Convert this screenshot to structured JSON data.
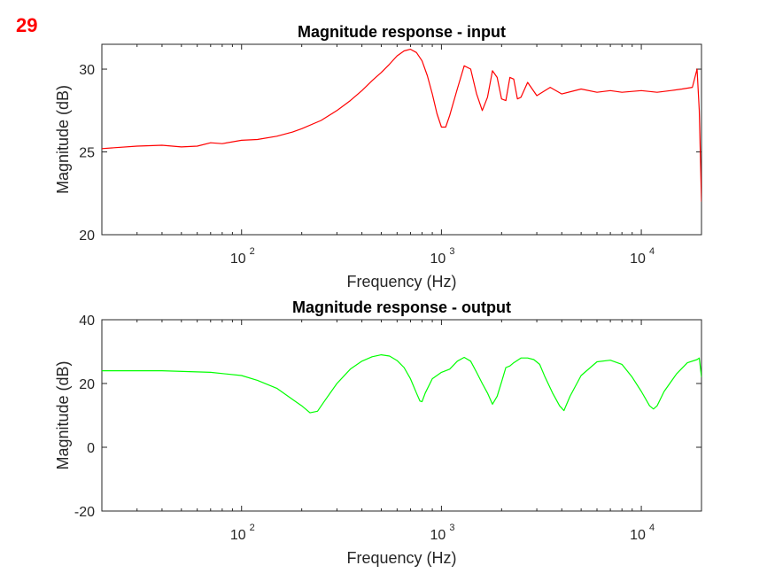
{
  "figure_label": "29",
  "chart_data": [
    {
      "type": "line",
      "title": "Magnitude response - input",
      "xlabel": "Frequency (Hz)",
      "ylabel": "Magnitude (dB)",
      "xscale": "log",
      "xlim": [
        20,
        20000
      ],
      "ylim": [
        20,
        31.5
      ],
      "yticks": [
        20,
        25,
        30
      ],
      "xticks": [
        {
          "value": 100,
          "base": "10",
          "exp": "2"
        },
        {
          "value": 1000,
          "base": "10",
          "exp": "3"
        },
        {
          "value": 10000,
          "base": "10",
          "exp": "4"
        }
      ],
      "series": [
        {
          "name": "input",
          "color": "#ff0000",
          "x": [
            20,
            30,
            40,
            50,
            60,
            70,
            80,
            100,
            120,
            150,
            180,
            200,
            250,
            300,
            350,
            400,
            450,
            500,
            550,
            600,
            650,
            700,
            750,
            800,
            850,
            900,
            950,
            1000,
            1050,
            1100,
            1200,
            1300,
            1400,
            1500,
            1600,
            1700,
            1800,
            1900,
            2000,
            2100,
            2200,
            2300,
            2400,
            2500,
            2700,
            3000,
            3500,
            4000,
            5000,
            6000,
            7000,
            8000,
            10000,
            12000,
            14000,
            16000,
            18000,
            19000,
            19500,
            20000
          ],
          "y": [
            25.2,
            25.35,
            25.4,
            25.3,
            25.35,
            25.55,
            25.5,
            25.7,
            25.75,
            25.95,
            26.2,
            26.4,
            26.9,
            27.5,
            28.1,
            28.7,
            29.3,
            29.8,
            30.3,
            30.8,
            31.1,
            31.2,
            31.0,
            30.5,
            29.6,
            28.5,
            27.3,
            26.5,
            26.5,
            27.2,
            28.8,
            30.2,
            30.0,
            28.5,
            27.5,
            28.3,
            29.9,
            29.5,
            28.2,
            28.1,
            29.5,
            29.4,
            28.2,
            28.3,
            29.2,
            28.4,
            28.9,
            28.5,
            28.8,
            28.6,
            28.7,
            28.6,
            28.7,
            28.6,
            28.7,
            28.8,
            28.9,
            30.0,
            27.5,
            22.0
          ]
        }
      ]
    },
    {
      "type": "line",
      "title": "Magnitude response - output",
      "xlabel": "Frequency (Hz)",
      "ylabel": "Magnitude (dB)",
      "xscale": "log",
      "xlim": [
        20,
        20000
      ],
      "ylim": [
        -20,
        40
      ],
      "yticks": [
        -20,
        0,
        20,
        40
      ],
      "xticks": [
        {
          "value": 100,
          "base": "10",
          "exp": "2"
        },
        {
          "value": 1000,
          "base": "10",
          "exp": "3"
        },
        {
          "value": 10000,
          "base": "10",
          "exp": "4"
        }
      ],
      "series": [
        {
          "name": "output",
          "color": "#00ff00",
          "x": [
            20,
            40,
            70,
            100,
            120,
            150,
            180,
            200,
            220,
            240,
            260,
            300,
            350,
            400,
            450,
            500,
            550,
            600,
            650,
            700,
            750,
            780,
            800,
            830,
            900,
            1000,
            1100,
            1200,
            1300,
            1400,
            1500,
            1600,
            1700,
            1800,
            1900,
            2000,
            2100,
            2200,
            2300,
            2500,
            2700,
            2900,
            3100,
            3300,
            3600,
            3900,
            4100,
            4400,
            5000,
            6000,
            7000,
            8000,
            9000,
            10000,
            11000,
            11500,
            12000,
            13000,
            15000,
            17000,
            19000,
            19500,
            20000
          ],
          "y": [
            24,
            24,
            23.5,
            22.5,
            21,
            18.5,
            15,
            13,
            10.8,
            11.3,
            14.5,
            20,
            24.5,
            27,
            28.4,
            29,
            28.6,
            27.2,
            25,
            21.5,
            17,
            14.5,
            14.3,
            17,
            21.5,
            23.5,
            24.5,
            27,
            28.2,
            27,
            23.5,
            20,
            17,
            13.5,
            16,
            20.5,
            25,
            25.5,
            26.5,
            28,
            28,
            27.5,
            26,
            22,
            17,
            13,
            11.5,
            16,
            22.5,
            26.8,
            27.3,
            26,
            22,
            17.5,
            13,
            12,
            13,
            17.5,
            23,
            26.5,
            27.5,
            28,
            22
          ]
        }
      ]
    }
  ]
}
